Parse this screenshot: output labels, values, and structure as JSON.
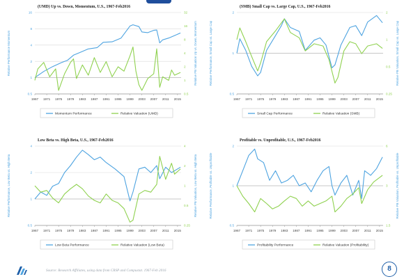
{
  "colors": {
    "performance": "#4da3e0",
    "valuation": "#8fd14f",
    "grid": "#d9d9d9",
    "axis_text": "#444444",
    "perf_axis_text": "#4da3e0",
    "val_axis_text": "#8fd14f",
    "accent": "#1f5fa8"
  },
  "footer": {
    "source": "Source:  Research Affiliates, using data from CRSP and Compustat. 1967-Feb 2016",
    "page_number": "8",
    "logo_icon": "ra-logo-icon"
  },
  "chart_data": [
    {
      "type": "line",
      "title": "(UMD) Up vs. Down, Momentum, U.S., 1967-Feb2016",
      "ylabel_left": "Relative Performance Momentum",
      "ylabel_right": "Relative PB Valuation Up vs. Down, Momentum",
      "scale": "log",
      "left_ticks": [
        "0.5",
        "1",
        "2",
        "4",
        "8",
        "16"
      ],
      "left_tick_values": [
        0.5,
        1,
        2,
        4,
        8,
        16
      ],
      "left_range": [
        0.5,
        16
      ],
      "right_ticks": [
        "0.5",
        "1",
        "2",
        "4",
        "8",
        "16",
        "32"
      ],
      "right_tick_values": [
        0.5,
        1,
        2,
        4,
        8,
        16,
        32
      ],
      "right_range": [
        0.5,
        32
      ],
      "bottom_tick": "0.5",
      "right_bottom_tick": "0.5",
      "x_ticks": [
        "1967",
        "1971",
        "1975",
        "1979",
        "1983",
        "1987",
        "1991",
        "1995",
        "1999",
        "2003",
        "2007",
        "2011",
        "2015"
      ],
      "x_range": [
        1967,
        2016.2
      ],
      "legend": [
        "Momentum Performance",
        "Relative Valuation (UMD)"
      ],
      "series": [
        {
          "role": "performance",
          "x": [
            1967,
            1970,
            1973,
            1976,
            1978,
            1980,
            1982,
            1985,
            1988,
            1990,
            1993,
            1996,
            1999,
            2000,
            2002,
            2003,
            2005,
            2007,
            2008,
            2009,
            2010,
            2012,
            2014,
            2016
          ],
          "values": [
            1.0,
            1.3,
            1.6,
            1.9,
            2.1,
            2.6,
            2.9,
            3.4,
            3.6,
            4.5,
            4.6,
            5.4,
            9.0,
            9.5,
            8.8,
            7.0,
            6.8,
            7.5,
            7.6,
            4.4,
            5.0,
            5.4,
            6.0,
            6.7
          ]
        },
        {
          "role": "valuation",
          "x": [
            1967,
            1968,
            1970,
            1972,
            1974,
            1975,
            1977,
            1979,
            1980,
            1981,
            1983,
            1985,
            1987,
            1989,
            1991,
            1993,
            1995,
            1997,
            1999,
            2000,
            2001,
            2002,
            2003,
            2005,
            2007,
            2008,
            2009,
            2010,
            2012,
            2013,
            2014,
            2016
          ],
          "values": [
            1.0,
            1.8,
            2.5,
            1.2,
            1.8,
            0.6,
            1.4,
            2.5,
            3.0,
            1.1,
            2.2,
            1.3,
            3.2,
            1.5,
            2.6,
            1.2,
            2.0,
            1.6,
            3.5,
            5.5,
            1.6,
            0.8,
            0.6,
            1.1,
            1.4,
            5.0,
            0.7,
            1.2,
            1.0,
            1.7,
            1.3,
            1.5
          ]
        }
      ]
    },
    {
      "type": "line",
      "title": "(SMB) Small Cap vs. Large Cap, U.S., 1967-Feb2016",
      "ylabel_left": "Relative Performance, Small Cap vs. Large Cap",
      "ylabel_right": "Relative PB Valuation, Small Cap vs. Large Cap",
      "scale": "log",
      "left_ticks": [
        "0.5",
        "1",
        "2"
      ],
      "left_tick_values": [
        0.5,
        1,
        2
      ],
      "left_range": [
        0.5,
        2
      ],
      "right_ticks": [
        "0.25",
        "0.5",
        "1",
        "2"
      ],
      "right_tick_values": [
        0.25,
        0.5,
        1,
        2
      ],
      "right_range": [
        0.25,
        2
      ],
      "bottom_tick": "0.5",
      "right_bottom_tick": "0.25",
      "x_ticks": [
        "1967",
        "1971",
        "1975",
        "1979",
        "1983",
        "1987",
        "1991",
        "1995",
        "1999",
        "2003",
        "2007",
        "2011",
        "2015"
      ],
      "x_range": [
        1967,
        2016.2
      ],
      "legend": [
        "Small Cap Performance",
        "Relative Valuation (SMB)"
      ],
      "series": [
        {
          "role": "performance",
          "x": [
            1967,
            1968,
            1970,
            1972,
            1974,
            1975,
            1977,
            1980,
            1982,
            1983,
            1985,
            1988,
            1990,
            1993,
            1995,
            1997,
            1999,
            2000,
            2002,
            2005,
            2007,
            2009,
            2011,
            2014,
            2016
          ],
          "values": [
            1.0,
            1.28,
            1.05,
            0.8,
            0.68,
            0.72,
            1.05,
            1.35,
            1.6,
            1.8,
            1.55,
            1.45,
            1.05,
            1.25,
            1.3,
            1.15,
            0.78,
            0.82,
            1.15,
            1.55,
            1.6,
            1.35,
            1.7,
            1.9,
            1.68
          ]
        },
        {
          "role": "valuation",
          "x": [
            1967,
            1968,
            1970,
            1972,
            1974,
            1975,
            1977,
            1980,
            1983,
            1985,
            1988,
            1990,
            1993,
            1996,
            1998,
            2000,
            2001,
            2003,
            2005,
            2007,
            2009,
            2011,
            2014,
            2016
          ],
          "values": [
            1.0,
            1.35,
            0.95,
            0.65,
            0.45,
            0.55,
            0.95,
            1.25,
            1.7,
            1.2,
            1.05,
            0.75,
            0.9,
            0.85,
            0.6,
            0.33,
            0.38,
            0.75,
            0.95,
            0.9,
            0.7,
            0.85,
            0.9,
            0.8
          ]
        }
      ]
    },
    {
      "type": "line",
      "title": "Low Beta vs. High Beta, U.S., 1967-Feb2016",
      "ylabel_left": "Relative Performance, Low Beta vs. High Beta",
      "ylabel_right": "Relative PB Valuation, Low Beta vs. High Beta",
      "scale": "log",
      "left_ticks": [
        "0.5",
        "1",
        "2",
        "4"
      ],
      "left_tick_values": [
        0.5,
        1,
        2,
        4
      ],
      "left_range": [
        0.5,
        4
      ],
      "right_ticks": [
        "0.25",
        "0.5",
        "1",
        "2",
        "4"
      ],
      "right_tick_values": [
        0.25,
        0.5,
        1,
        2,
        4
      ],
      "right_range": [
        0.25,
        4
      ],
      "bottom_tick": "0.5",
      "right_bottom_tick": "0.25",
      "x_ticks": [
        "1967",
        "1971",
        "1975",
        "1979",
        "1983",
        "1987",
        "1991",
        "1995",
        "1999",
        "2003",
        "2007",
        "2011",
        "2015"
      ],
      "x_range": [
        1967,
        2016.2
      ],
      "legend": [
        "Low Beta Performance",
        "Relative Valuation (Low Beta)"
      ],
      "series": [
        {
          "role": "performance",
          "x": [
            1967,
            1969,
            1971,
            1973,
            1975,
            1977,
            1979,
            1981,
            1983,
            1985,
            1987,
            1989,
            1991,
            1994,
            1997,
            1999,
            2000,
            2002,
            2004,
            2006,
            2008,
            2009,
            2011,
            2013,
            2016
          ],
          "values": [
            1.0,
            1.2,
            1.1,
            1.4,
            1.5,
            2.0,
            2.4,
            3.0,
            3.6,
            3.2,
            2.8,
            3.0,
            2.6,
            2.2,
            1.8,
            0.95,
            1.2,
            2.2,
            2.3,
            2.0,
            2.4,
            1.7,
            2.3,
            2.0,
            2.3
          ]
        },
        {
          "role": "valuation",
          "x": [
            1967,
            1969,
            1971,
            1973,
            1975,
            1977,
            1979,
            1981,
            1983,
            1985,
            1987,
            1989,
            1991,
            1993,
            1995,
            1997,
            1999,
            2000,
            2002,
            2004,
            2006,
            2008,
            2009,
            2011,
            2013,
            2014,
            2016
          ],
          "values": [
            1.0,
            0.8,
            0.85,
            0.65,
            0.55,
            0.75,
            0.9,
            1.05,
            0.9,
            0.7,
            0.6,
            0.55,
            0.75,
            0.6,
            0.55,
            0.45,
            0.28,
            0.3,
            0.75,
            0.85,
            0.8,
            1.05,
            2.8,
            1.25,
            2.2,
            1.5,
            1.8
          ]
        }
      ]
    },
    {
      "type": "line",
      "title": "Profitable vs. Unprofitable, U.S., 1967-Feb2016",
      "ylabel_left": "Relative Performance, Profitable vs. Unprofitable",
      "ylabel_right": "Relative PB Valuation, Profitable vs. Unprofitable",
      "scale": "log",
      "left_ticks": [
        "0.5",
        "1",
        "2"
      ],
      "left_tick_values": [
        0.5,
        1,
        2
      ],
      "left_range": [
        0.5,
        2
      ],
      "right_ticks": [
        "1.5",
        "3",
        "6"
      ],
      "right_tick_values": [
        1.5,
        3,
        6
      ],
      "right_range": [
        1.5,
        6
      ],
      "bottom_tick": "0.5",
      "right_bottom_tick": "1.5",
      "x_ticks": [
        "1967",
        "1971",
        "1975",
        "1979",
        "1983",
        "1987",
        "1991",
        "1995",
        "1999",
        "2003",
        "2007",
        "2011",
        "2015"
      ],
      "x_range": [
        1967,
        2016.2
      ],
      "legend": [
        "Profitability Performance",
        "Relative Valuation (Profitability)"
      ],
      "series": [
        {
          "role": "performance",
          "x": [
            1967,
            1969,
            1971,
            1973,
            1974,
            1976,
            1978,
            1980,
            1982,
            1984,
            1986,
            1988,
            1990,
            1992,
            1994,
            1996,
            1998,
            1999,
            2000,
            2002,
            2004,
            2006,
            2008,
            2009,
            2010,
            2012,
            2014,
            2016
          ],
          "values": [
            1.0,
            1.3,
            1.7,
            1.9,
            1.6,
            1.5,
            1.1,
            1.3,
            1.05,
            1.1,
            1.2,
            1.0,
            1.05,
            0.9,
            1.1,
            1.3,
            1.4,
            1.0,
            0.85,
            1.05,
            1.2,
            0.85,
            1.1,
            0.8,
            1.3,
            1.2,
            1.35,
            1.65
          ]
        },
        {
          "role": "valuation",
          "x": [
            1967,
            1969,
            1971,
            1973,
            1975,
            1977,
            1979,
            1981,
            1983,
            1985,
            1987,
            1989,
            1991,
            1993,
            1995,
            1997,
            1999,
            2000,
            2002,
            2004,
            2006,
            2008,
            2009,
            2011,
            2013,
            2016
          ],
          "values": [
            3.0,
            2.5,
            2.2,
            1.9,
            2.4,
            2.2,
            2.0,
            2.1,
            2.3,
            2.5,
            2.4,
            2.1,
            2.3,
            2.1,
            2.2,
            2.3,
            2.5,
            1.9,
            2.1,
            2.4,
            2.6,
            2.9,
            2.2,
            2.8,
            3.2,
            3.6
          ]
        }
      ]
    }
  ]
}
